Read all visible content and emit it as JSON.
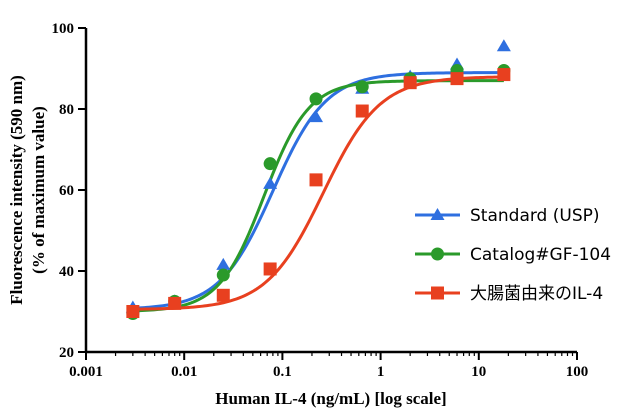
{
  "chart_data": {
    "type": "scatter",
    "x_scale": "log",
    "xlim": [
      0.001,
      100
    ],
    "ylim": [
      20,
      100
    ],
    "xticks": [
      0.001,
      0.01,
      0.1,
      1,
      10,
      100
    ],
    "xtick_labels": [
      "0.001",
      "0.01",
      "0.1",
      "1",
      "10",
      "100"
    ],
    "yticks": [
      20,
      40,
      60,
      80,
      100
    ],
    "ytick_labels": [
      "20",
      "40",
      "60",
      "80",
      "100"
    ],
    "xlabel": "Human IL-4 (ng/mL) [log scale]",
    "ylabel_line1": "Fluorescence intensity (590 nm)",
    "ylabel_line2": "(% of maximum value)",
    "grid": false,
    "legend_position": "right",
    "curve_fit": "sigmoidal",
    "series": [
      {
        "name": "Standard (USP)",
        "color": "#2e6fe0",
        "marker": "triangle",
        "x": [
          0.003,
          0.008,
          0.025,
          0.075,
          0.22,
          0.65,
          2,
          6,
          18
        ],
        "y": [
          31,
          32.5,
          41.5,
          61.5,
          78,
          85,
          88,
          91,
          95.5
        ],
        "curve": {
          "bottom": 30.5,
          "top": 89,
          "ec50": 0.08,
          "hill": 1.6
        }
      },
      {
        "name": "Catalog#GF-104",
        "color": "#2a9a2a",
        "marker": "circle",
        "x": [
          0.003,
          0.008,
          0.025,
          0.075,
          0.22,
          0.65,
          2,
          6,
          18
        ],
        "y": [
          29.5,
          32.5,
          39,
          66.5,
          82.5,
          85.5,
          87.5,
          89.5,
          89.5
        ],
        "curve": {
          "bottom": 30,
          "top": 87,
          "ec50": 0.065,
          "hill": 1.9
        }
      },
      {
        "name": "大腸菌由来のIL-4",
        "color": "#e8401f",
        "marker": "square",
        "x": [
          0.003,
          0.008,
          0.025,
          0.075,
          0.22,
          0.65,
          2,
          6,
          18
        ],
        "y": [
          30,
          32,
          34,
          40.5,
          62.5,
          79.5,
          86.5,
          87.5,
          88.5
        ],
        "curve": {
          "bottom": 30.5,
          "top": 88,
          "ec50": 0.26,
          "hill": 1.5
        }
      }
    ]
  }
}
